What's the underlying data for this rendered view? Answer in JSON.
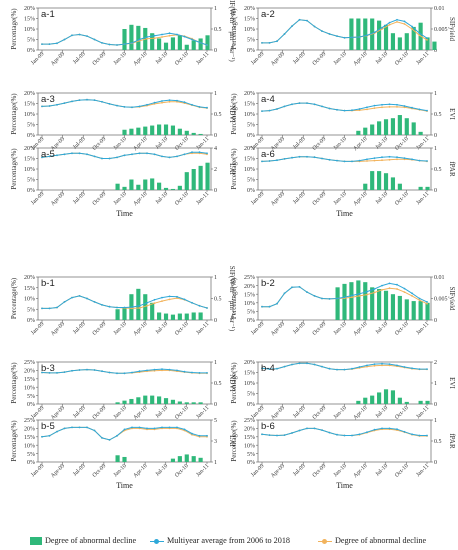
{
  "legend": {
    "bar": "Degree of abnormal decline",
    "blue": "Multiyear average from 2006 to 2018",
    "orange": "Degree of abnormal decline"
  },
  "colors": {
    "bar": "#2fb87a",
    "blue": "#2fa8d8",
    "orange": "#f2b35c",
    "axis": "#555555"
  },
  "xticks": [
    "Jan-09",
    "Apr-09",
    "Jul-09",
    "Oct-09",
    "Jan-10",
    "Apr-10",
    "Jul-10",
    "Oct-10",
    "Jan-11"
  ],
  "xlabel": "Time",
  "left_ylabel": "Percentage(%)",
  "chart_data": [
    {
      "id": "a-1",
      "type": "bar",
      "left_ticks": [
        "0%",
        "5%",
        "10%",
        "15%",
        "20%"
      ],
      "left_max": 20,
      "right_label": "SIF(W·m⁻²·μm⁻¹·sr⁻¹)",
      "right_ticks": [
        "0",
        "0.5",
        "1"
      ],
      "bars": [
        0,
        0,
        0,
        0,
        0,
        0,
        0,
        0,
        0,
        0,
        0,
        0,
        10,
        12,
        11.5,
        10.5,
        8,
        5.5,
        3.5,
        6,
        7,
        2.5,
        4.5,
        5.5,
        7
      ],
      "blue": [
        0.14,
        0.14,
        0.16,
        0.25,
        0.35,
        0.37,
        0.33,
        0.25,
        0.17,
        0.13,
        0.12,
        0.14,
        0.17,
        0.25,
        0.31,
        0.34,
        0.37,
        0.4,
        0.37,
        0.32,
        0.25,
        0.18,
        0.12
      ],
      "orange": [
        0.14,
        0.14,
        0.16,
        0.25,
        0.35,
        0.37,
        0.33,
        0.25,
        0.17,
        0.13,
        0.12,
        0.14,
        0.16,
        0.22,
        0.27,
        0.28,
        0.31,
        0.34,
        0.36,
        0.33,
        0.27,
        0.18,
        0.12
      ]
    },
    {
      "id": "a-2",
      "type": "bar",
      "left_ticks": [
        "0%",
        "5%",
        "10%",
        "15%",
        "20%"
      ],
      "left_max": 20,
      "right_label": "SIFyield",
      "right_ticks": [
        "0",
        "0.005",
        "0.01"
      ],
      "bars": [
        0,
        0,
        0,
        0,
        0,
        0,
        0,
        0,
        0,
        0,
        0,
        0,
        0,
        15,
        15,
        15,
        15,
        14,
        12,
        8,
        6,
        8,
        11,
        13,
        6,
        4
      ],
      "blue": [
        0.0017,
        0.0017,
        0.0021,
        0.0038,
        0.0057,
        0.0072,
        0.007,
        0.0056,
        0.0045,
        0.0038,
        0.0033,
        0.0029,
        0.003,
        0.0031,
        0.0035,
        0.0042,
        0.0053,
        0.0065,
        0.0072,
        0.0068,
        0.0056,
        0.004,
        0.0028
      ],
      "orange": [
        0.0017,
        0.0017,
        0.0021,
        0.0038,
        0.0057,
        0.0072,
        0.007,
        0.0056,
        0.0045,
        0.0038,
        0.0033,
        0.0029,
        0.003,
        0.0031,
        0.0034,
        0.004,
        0.005,
        0.006,
        0.0067,
        0.0062,
        0.005,
        0.0035,
        0.0024
      ]
    },
    {
      "id": "a-3",
      "type": "bar",
      "left_ticks": [
        "0%",
        "5%",
        "10%",
        "15%",
        "20%"
      ],
      "left_max": 20,
      "right_label": "NDVI",
      "right_ticks": [
        "0",
        "0.5",
        "1"
      ],
      "bars": [
        0,
        0,
        0,
        0,
        0,
        0,
        0,
        0,
        0,
        0,
        0,
        0,
        2.5,
        3,
        3.5,
        4,
        4.5,
        5,
        5,
        4.5,
        3,
        2,
        1,
        0.5,
        0
      ],
      "blue": [
        0.68,
        0.69,
        0.72,
        0.76,
        0.8,
        0.83,
        0.84,
        0.83,
        0.79,
        0.74,
        0.7,
        0.67,
        0.66,
        0.68,
        0.72,
        0.77,
        0.81,
        0.83,
        0.82,
        0.78,
        0.72,
        0.67,
        0.65
      ],
      "orange": [
        0.68,
        0.69,
        0.72,
        0.76,
        0.8,
        0.83,
        0.84,
        0.83,
        0.79,
        0.74,
        0.7,
        0.67,
        0.66,
        0.67,
        0.7,
        0.74,
        0.77,
        0.79,
        0.79,
        0.76,
        0.71,
        0.66,
        0.64
      ]
    },
    {
      "id": "a-4",
      "type": "bar",
      "left_ticks": [
        "0%",
        "5%",
        "10%",
        "15%",
        "20%"
      ],
      "left_max": 20,
      "right_label": "EVI",
      "right_ticks": [
        "0",
        "0.5",
        "1"
      ],
      "bars": [
        0,
        0,
        0,
        0,
        0,
        0,
        0,
        0,
        0,
        0,
        0,
        0,
        0,
        0,
        2,
        3.5,
        5,
        6.5,
        7.5,
        8,
        9.5,
        8,
        6,
        1.5,
        0
      ],
      "blue": [
        0.57,
        0.58,
        0.62,
        0.68,
        0.73,
        0.76,
        0.76,
        0.73,
        0.68,
        0.63,
        0.6,
        0.58,
        0.59,
        0.62,
        0.66,
        0.7,
        0.72,
        0.73,
        0.72,
        0.69,
        0.65,
        0.61,
        0.58
      ],
      "orange": [
        0.57,
        0.58,
        0.62,
        0.68,
        0.73,
        0.76,
        0.76,
        0.73,
        0.68,
        0.63,
        0.6,
        0.58,
        0.58,
        0.59,
        0.61,
        0.64,
        0.66,
        0.67,
        0.67,
        0.66,
        0.63,
        0.6,
        0.57
      ]
    },
    {
      "id": "a-5",
      "type": "bar",
      "left_ticks": [
        "0%",
        "5%",
        "10%",
        "15%",
        "20%"
      ],
      "left_max": 20,
      "right_label": "LAI",
      "right_ticks": [
        "0",
        "2",
        "4"
      ],
      "bars": [
        0,
        0,
        0,
        0,
        0,
        0,
        0,
        0,
        0,
        0,
        0,
        3,
        1.5,
        5,
        2.5,
        5,
        5.5,
        3.5,
        1,
        0.5,
        2,
        8.5,
        10,
        11.5,
        13
      ],
      "blue": [
        3.1,
        3.2,
        3.3,
        3.4,
        3.5,
        3.5,
        3.4,
        3.2,
        3.0,
        3.0,
        3.1,
        3.3,
        3.4,
        3.5,
        3.5,
        3.4,
        3.2,
        3.1,
        3.2,
        3.4,
        3.6,
        3.6,
        3.5
      ],
      "orange": [
        3.1,
        3.2,
        3.3,
        3.4,
        3.5,
        3.5,
        3.4,
        3.2,
        3.0,
        3.0,
        3.1,
        3.3,
        3.4,
        3.5,
        3.5,
        3.4,
        3.2,
        3.1,
        3.2,
        3.4,
        3.5,
        3.5,
        3.4
      ]
    },
    {
      "id": "a-6",
      "type": "bar",
      "left_ticks": [
        "0%",
        "5%",
        "10%",
        "15%",
        "20%"
      ],
      "left_max": 20,
      "right_label": "fPAR",
      "right_ticks": [
        "0",
        "0.5",
        "1"
      ],
      "bars": [
        0,
        0,
        0,
        0,
        0,
        0,
        0,
        0,
        0,
        0,
        0,
        0,
        0,
        0,
        0,
        3,
        9,
        9,
        8,
        6,
        3,
        0,
        0,
        1.5,
        1.5
      ],
      "blue": [
        0.68,
        0.69,
        0.71,
        0.74,
        0.77,
        0.79,
        0.79,
        0.78,
        0.75,
        0.72,
        0.7,
        0.68,
        0.68,
        0.7,
        0.73,
        0.76,
        0.78,
        0.79,
        0.78,
        0.76,
        0.73,
        0.7,
        0.69
      ],
      "orange": [
        0.68,
        0.69,
        0.71,
        0.74,
        0.77,
        0.79,
        0.79,
        0.78,
        0.75,
        0.72,
        0.7,
        0.68,
        0.68,
        0.68,
        0.69,
        0.7,
        0.71,
        0.72,
        0.73,
        0.73,
        0.72,
        0.7,
        0.68
      ]
    },
    {
      "id": "b-1",
      "type": "bar",
      "left_ticks": [
        "0%",
        "5%",
        "10%",
        "15%",
        "20%"
      ],
      "left_max": 20,
      "right_label": "SIF(W·m⁻²·μm⁻¹·sr⁻¹)",
      "right_ticks": [
        "0",
        "0.5",
        "1"
      ],
      "bars": [
        0,
        0,
        0,
        0,
        0,
        0,
        0,
        0,
        0,
        0,
        0,
        5,
        6,
        12,
        14.5,
        12,
        8,
        3.5,
        3,
        2.5,
        3,
        3,
        3.5,
        3.5,
        0
      ],
      "blue": [
        0.27,
        0.27,
        0.29,
        0.42,
        0.52,
        0.56,
        0.5,
        0.42,
        0.35,
        0.31,
        0.29,
        0.29,
        0.3,
        0.33,
        0.4,
        0.47,
        0.52,
        0.55,
        0.54,
        0.48,
        0.4,
        0.33,
        0.28
      ],
      "orange": [
        0.27,
        0.27,
        0.29,
        0.42,
        0.52,
        0.56,
        0.5,
        0.42,
        0.35,
        0.31,
        0.29,
        0.28,
        0.27,
        0.28,
        0.33,
        0.39,
        0.44,
        0.48,
        0.51,
        0.47,
        0.4,
        0.33,
        0.28
      ]
    },
    {
      "id": "b-2",
      "type": "bar",
      "left_ticks": [
        "0%",
        "5%",
        "10%",
        "15%",
        "20%",
        "25%"
      ],
      "left_max": 25,
      "right_label": "SIFyield",
      "right_ticks": [
        "0",
        "0.005",
        "0.01"
      ],
      "bars": [
        0,
        0,
        0,
        0,
        0,
        0,
        0,
        0,
        0,
        0,
        0,
        19,
        21,
        22,
        23,
        22,
        19,
        18,
        17,
        15,
        14,
        12,
        11,
        11,
        10
      ],
      "blue": [
        0.0031,
        0.0031,
        0.0038,
        0.0062,
        0.0076,
        0.0077,
        0.0065,
        0.0056,
        0.005,
        0.0049,
        0.005,
        0.0053,
        0.0057,
        0.0061,
        0.0066,
        0.0072,
        0.008,
        0.0085,
        0.0082,
        0.0073,
        0.0062,
        0.005,
        0.0042
      ],
      "orange": [
        0.0031,
        0.0031,
        0.0038,
        0.0062,
        0.0076,
        0.0077,
        0.0065,
        0.0056,
        0.005,
        0.0049,
        0.005,
        0.0051,
        0.0053,
        0.0056,
        0.0059,
        0.0064,
        0.007,
        0.0074,
        0.0072,
        0.0065,
        0.0056,
        0.0046,
        0.0038
      ]
    },
    {
      "id": "b-3",
      "type": "bar",
      "left_ticks": [
        "0%",
        "5%",
        "10%",
        "15%",
        "20%",
        "25%"
      ],
      "left_max": 25,
      "right_label": "NDVI",
      "right_ticks": [
        "0",
        "0.5",
        "1"
      ],
      "bars": [
        0,
        0,
        0,
        0,
        0,
        0,
        0,
        0,
        0,
        0,
        0,
        1,
        2,
        3,
        4,
        5,
        5,
        4.5,
        3.5,
        2.5,
        1.5,
        1,
        1,
        1,
        0
      ],
      "blue": [
        0.75,
        0.74,
        0.74,
        0.76,
        0.79,
        0.81,
        0.82,
        0.81,
        0.78,
        0.75,
        0.73,
        0.73,
        0.75,
        0.78,
        0.8,
        0.82,
        0.83,
        0.82,
        0.8,
        0.77,
        0.75,
        0.74,
        0.74
      ],
      "orange": [
        0.75,
        0.74,
        0.74,
        0.76,
        0.79,
        0.81,
        0.82,
        0.81,
        0.78,
        0.75,
        0.73,
        0.73,
        0.74,
        0.76,
        0.78,
        0.79,
        0.8,
        0.8,
        0.78,
        0.76,
        0.74,
        0.73,
        0.73
      ]
    },
    {
      "id": "b-4",
      "type": "bar",
      "left_ticks": [
        "0%",
        "5%",
        "10%",
        "15%",
        "20%"
      ],
      "left_max": 20,
      "right_label": "EVI",
      "right_ticks": [
        "0",
        "1",
        "2"
      ],
      "bars": [
        0,
        0,
        0,
        0,
        0,
        0,
        0,
        0,
        0,
        0,
        0,
        0,
        0,
        0,
        1.5,
        3,
        4,
        5.5,
        7,
        6.5,
        3,
        1,
        0,
        1.5,
        1.5
      ],
      "blue": [
        1.7,
        1.66,
        1.68,
        1.78,
        1.88,
        1.94,
        1.94,
        1.88,
        1.78,
        1.68,
        1.64,
        1.64,
        1.68,
        1.76,
        1.84,
        1.9,
        1.92,
        1.9,
        1.84,
        1.76,
        1.7,
        1.66,
        1.66
      ],
      "orange": [
        1.7,
        1.66,
        1.68,
        1.78,
        1.88,
        1.94,
        1.94,
        1.88,
        1.78,
        1.68,
        1.64,
        1.64,
        1.66,
        1.72,
        1.78,
        1.82,
        1.84,
        1.84,
        1.8,
        1.74,
        1.68,
        1.65,
        1.65
      ]
    },
    {
      "id": "b-5",
      "type": "bar",
      "left_ticks": [
        "0%",
        "5%",
        "10%",
        "15%",
        "20%",
        "25%"
      ],
      "left_max": 25,
      "right_label": "LAI",
      "right_ticks": [
        "1",
        "3",
        "5"
      ],
      "bars": [
        0,
        0,
        0,
        0,
        0,
        0,
        0,
        0,
        0,
        0,
        0,
        4,
        3,
        0,
        0,
        0,
        0,
        0,
        0,
        2,
        3.5,
        4.5,
        3.5,
        2.5,
        0
      ],
      "blue": [
        3.4,
        3.5,
        3.9,
        4.2,
        4.3,
        4.3,
        4.3,
        4.0,
        3.3,
        3.1,
        3.5,
        4.1,
        4.3,
        4.3,
        4.2,
        4.2,
        4.3,
        4.3,
        4.3,
        4.1,
        3.7,
        3.5,
        3.5
      ],
      "orange": [
        3.4,
        3.5,
        3.9,
        4.2,
        4.3,
        4.3,
        4.3,
        4.0,
        3.3,
        3.1,
        3.5,
        4.0,
        4.2,
        4.2,
        4.1,
        4.1,
        4.2,
        4.2,
        4.2,
        4.0,
        3.6,
        3.4,
        3.4
      ]
    },
    {
      "id": "b-6",
      "type": "bar",
      "left_ticks": [
        "0%",
        "5%",
        "10%",
        "15%",
        "20%",
        "25%"
      ],
      "left_max": 25,
      "right_label": "fPAR",
      "right_ticks": [
        "0",
        "0.5",
        "1"
      ],
      "bars": [
        0,
        0,
        0,
        0,
        0,
        0,
        0,
        0,
        0,
        0,
        0,
        0,
        0,
        0,
        0,
        0,
        0,
        0,
        0,
        0,
        0,
        0,
        0,
        0,
        0
      ],
      "blue": [
        0.66,
        0.64,
        0.63,
        0.64,
        0.69,
        0.75,
        0.8,
        0.8,
        0.76,
        0.7,
        0.65,
        0.63,
        0.63,
        0.66,
        0.71,
        0.77,
        0.8,
        0.8,
        0.78,
        0.72,
        0.66,
        0.63,
        0.63
      ],
      "orange": [
        0.66,
        0.64,
        0.63,
        0.64,
        0.69,
        0.75,
        0.8,
        0.8,
        0.76,
        0.7,
        0.65,
        0.63,
        0.63,
        0.65,
        0.7,
        0.75,
        0.78,
        0.78,
        0.76,
        0.71,
        0.65,
        0.62,
        0.62
      ]
    }
  ]
}
